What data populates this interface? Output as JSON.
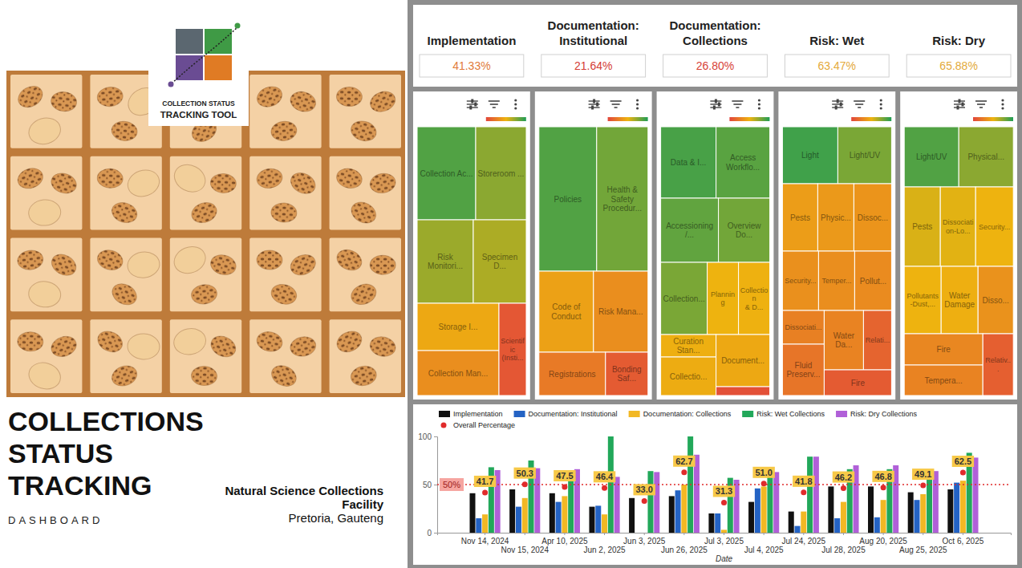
{
  "cover": {
    "logo_text": [
      "COLLECTION STATUS",
      "TRACKING TOOL"
    ],
    "title": [
      "COLLECTIONS",
      "STATUS",
      "TRACKING"
    ],
    "subtitle": "DASHBOARD",
    "org": [
      "Natural Science Collections",
      "Facility"
    ],
    "location": "Pretoria, Gauteng"
  },
  "kpis": {
    "labels": [
      "Implementation",
      "Documentation: Institutional",
      "Documentation: Collections",
      "Risk: Wet",
      "Risk: Dry"
    ],
    "values": [
      41.33,
      21.64,
      26.8,
      63.47,
      65.88
    ],
    "value_labels": [
      "41.33%",
      "21.64%",
      "26.80%",
      "63.47%",
      "65.88%"
    ]
  },
  "chart_data": [
    {
      "type": "treemap",
      "labels": [
        "Collection Ac...",
        "Storeroom ...",
        "Risk Monitori...",
        "Specimen D...",
        "Storage I...",
        "Collection Man...",
        "Scientific (Insti..."
      ],
      "values": [
        86,
        74,
        74,
        70,
        61,
        58,
        40
      ],
      "scores": [
        88,
        74,
        70,
        66,
        45,
        33,
        8
      ],
      "color_range": [
        0,
        100
      ]
    },
    {
      "type": "treemap",
      "labels": [
        "Policies",
        "Health & Safety Procedur...",
        "Code of Conduct",
        "Risk Mana...",
        "Registrations",
        "Bonding Saf..."
      ],
      "values": [
        130,
        115,
        69,
        68,
        45,
        29
      ],
      "scores": [
        88,
        80,
        42,
        33,
        24,
        10
      ],
      "color_range": [
        0,
        100
      ]
    },
    {
      "type": "treemap",
      "labels": [
        "Data & I...",
        "Access Workflo...",
        "Accessioning /...",
        "Overview Do...",
        "Collection...",
        "Planning",
        "Collection & D...",
        "Curation Stan...",
        "Collectio...",
        "Document...",
        null
      ],
      "values": [
        59,
        57,
        56,
        50,
        50,
        34,
        34,
        18,
        32,
        42,
        7
      ],
      "scores": [
        90,
        86,
        84,
        80,
        78,
        50,
        49,
        48,
        47,
        45,
        5
      ],
      "color_range": [
        0,
        100
      ]
    },
    {
      "type": "treemap",
      "labels": [
        "Light",
        "Light/UV",
        "Pests",
        "Physic...",
        "Dissoc...",
        "Security...",
        "Temper...",
        "Pollut...",
        "Dissociati...",
        "Fluid Preserv...",
        "Water Da...",
        "Relati...",
        "Fire"
      ],
      "values": [
        49,
        47,
        37,
        37,
        39,
        33,
        33,
        34,
        22,
        33,
        36,
        26,
        27
      ],
      "scores": [
        92,
        78,
        40,
        38,
        36,
        34,
        33,
        32,
        27,
        22,
        28,
        14,
        10
      ],
      "color_range": [
        0,
        100
      ]
    },
    {
      "type": "treemap",
      "labels": [
        "Light/UV",
        "Physical...",
        "Pests",
        "Dissociation-Lo...",
        "Security...",
        "Pollutants-Dust,...",
        "Water Damage",
        "Disso...",
        "Fire",
        "Tempera...",
        "Relativ..."
      ],
      "values": [
        50,
        50,
        43,
        43,
        45,
        38,
        38,
        36,
        38,
        36,
        29
      ],
      "scores": [
        88,
        74,
        55,
        53,
        50,
        50,
        48,
        35,
        30,
        28,
        12
      ],
      "color_range": [
        0,
        100
      ]
    },
    {
      "type": "bar",
      "categories": [
        "Nov 14, 2024",
        "Nov 15, 2024",
        "Apr 10, 2025",
        "Jun 2, 2025",
        "Jun 3, 2025",
        "Jun 26, 2025",
        "Jul 3, 2025",
        "Jul 4, 2025",
        "Jul 24, 2025",
        "Jul 28, 2025",
        "Aug 20, 2025",
        "Aug 25, 2025",
        "Oct 6, 2025"
      ],
      "series": [
        {
          "name": "Implementation",
          "color": "#111111",
          "values": [
            41,
            45,
            41,
            27,
            36,
            38,
            20,
            32,
            22,
            48,
            48,
            42,
            45
          ]
        },
        {
          "name": "Documentation: Institutional",
          "color": "#2463c4",
          "values": [
            15,
            27,
            32,
            28,
            0,
            44,
            20,
            46,
            7,
            15,
            16,
            34,
            52
          ]
        },
        {
          "name": "Documentation: Collections",
          "color": "#f2b824",
          "values": [
            19,
            36,
            38,
            19,
            0,
            50,
            3,
            48,
            22,
            32,
            34,
            40,
            54
          ]
        },
        {
          "name": "Risk: Wet Collections",
          "color": "#22a85a",
          "values": [
            68,
            75,
            60,
            100,
            64,
            100,
            57,
            66,
            79,
            66,
            66,
            65,
            83
          ]
        },
        {
          "name": "Risk: Dry Collections",
          "color": "#b060d8",
          "values": [
            65,
            67,
            66,
            58,
            63,
            81,
            55,
            63,
            79,
            70,
            70,
            64,
            78
          ]
        },
        {
          "name": "Overall Percentage",
          "type": "scatter",
          "marker": "circle",
          "color": "#e02b2b",
          "data_labels": true,
          "values": [
            41.7,
            50.3,
            47.5,
            46.4,
            33,
            62.7,
            31.3,
            51,
            41.8,
            46.2,
            46.8,
            49.1,
            62.5
          ],
          "value_labels": [
            "41.7",
            "50.3",
            "47.5",
            "46.4",
            "33.0",
            "62.7",
            "31.3",
            "51.0",
            "41.8",
            "46.2",
            "46.8",
            "49.1",
            "62.5"
          ]
        }
      ],
      "ylim": [
        0,
        100
      ],
      "yticks": [
        0,
        50,
        100
      ],
      "x_label": "Date",
      "legend": "top",
      "annotations": [
        {
          "y": 50,
          "label": "50%",
          "line_style": "dotted"
        }
      ]
    }
  ]
}
